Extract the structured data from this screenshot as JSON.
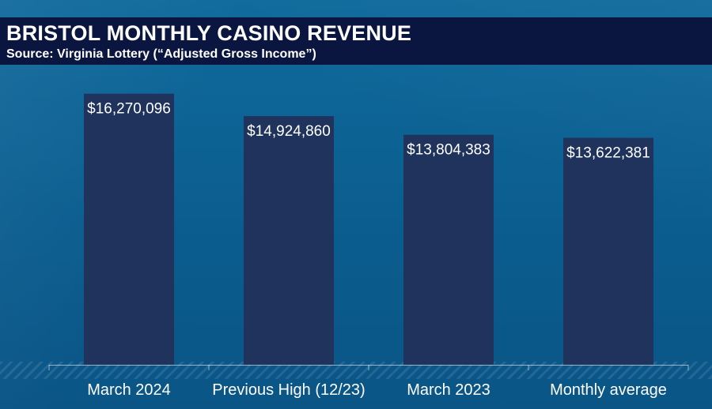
{
  "header": {
    "title": "BRISTOL MONTHLY CASINO REVENUE",
    "subtitle": "Source: Virginia Lottery (“Adjusted Gross Income”)"
  },
  "colors": {
    "background": "#0d5e8e",
    "header_band": "#0a1640",
    "bar": "#1f335c",
    "text": "#ffffff"
  },
  "chart_data": {
    "type": "bar",
    "title": "BRISTOL MONTHLY CASINO REVENUE",
    "subtitle": "Source: Virginia Lottery (“Adjusted Gross Income”)",
    "categories": [
      "March 2024",
      "Previous High (12/23)",
      "March 2023",
      "Monthly average"
    ],
    "values": [
      16270096,
      14924860,
      13804383,
      13622381
    ],
    "data_labels": [
      "$16,270,096",
      "$14,924,860",
      "$13,804,383",
      "$13,622,381"
    ],
    "xlabel": "",
    "ylabel": "",
    "ylim": [
      0,
      20000000
    ],
    "grid": false,
    "legend": "none"
  }
}
